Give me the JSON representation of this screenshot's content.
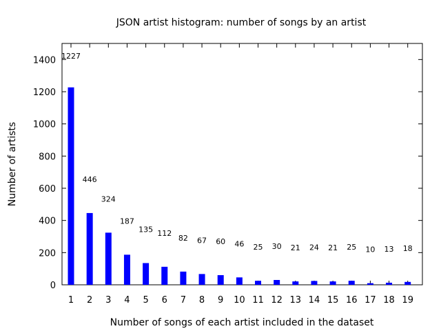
{
  "chart_data": {
    "type": "bar",
    "title": "JSON artist histogram: number of songs by an artist",
    "xlabel": "Number of songs of each artist included in the dataset",
    "ylabel": "Number of artists",
    "categories": [
      "1",
      "2",
      "3",
      "4",
      "5",
      "6",
      "7",
      "8",
      "9",
      "10",
      "11",
      "12",
      "13",
      "14",
      "15",
      "16",
      "17",
      "18",
      "19"
    ],
    "values": [
      1227,
      446,
      324,
      187,
      135,
      112,
      82,
      67,
      60,
      46,
      25,
      30,
      21,
      24,
      21,
      25,
      10,
      13,
      18
    ],
    "data_labels": [
      "1227",
      "446",
      "324",
      "187",
      "135",
      "112",
      "82",
      "67",
      "60",
      "46",
      "25",
      "30",
      "21",
      "24",
      "21",
      "25",
      "10",
      "13",
      "18"
    ],
    "ylim": [
      0,
      1500
    ],
    "yticks": [
      0,
      200,
      400,
      600,
      800,
      1000,
      1200,
      1400
    ],
    "ytick_labels": [
      "0",
      "200",
      "400",
      "600",
      "800",
      "1000",
      "1200",
      "1400"
    ],
    "bar_color": "#0000ff",
    "grid": false,
    "legend": "none"
  }
}
